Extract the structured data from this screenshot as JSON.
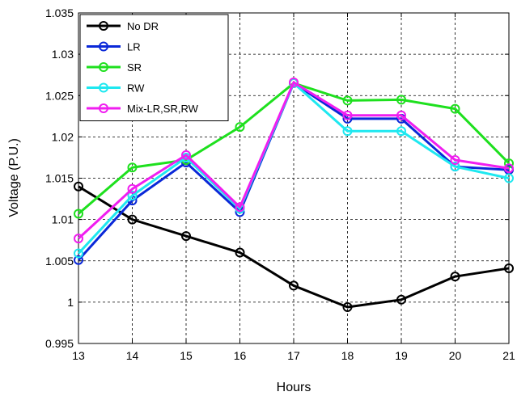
{
  "chart_data": {
    "type": "line",
    "title": "",
    "xlabel": "Hours",
    "ylabel": "Voltage (P.U.)",
    "x": [
      13,
      14,
      15,
      16,
      17,
      18,
      19,
      20,
      21
    ],
    "xlim": [
      13,
      21
    ],
    "ylim": [
      0.995,
      1.035
    ],
    "xticks": [
      "13",
      "14",
      "15",
      "16",
      "17",
      "18",
      "19",
      "20",
      "21"
    ],
    "yticks": [
      0.995,
      1,
      1.005,
      1.01,
      1.015,
      1.02,
      1.025,
      1.03,
      1.035
    ],
    "ytick_labels": [
      "0.995",
      "1",
      "1.005",
      "1.01",
      "1.015",
      "1.02",
      "1.025",
      "1.03",
      "1.035"
    ],
    "grid": true,
    "legend_position": "top-left",
    "series": [
      {
        "name": "No DR",
        "color": "#000000",
        "values": [
          1.014,
          1.01,
          1.008,
          1.006,
          1.002,
          0.9994,
          1.0003,
          1.0031,
          1.0041
        ]
      },
      {
        "name": "LR",
        "color": "#0a28d8",
        "values": [
          1.0051,
          1.0123,
          1.0169,
          1.0109,
          1.0265,
          1.0222,
          1.0222,
          1.0164,
          1.016
        ]
      },
      {
        "name": "SR",
        "color": "#1ee01e",
        "values": [
          1.0107,
          1.0163,
          1.0172,
          1.0212,
          1.0265,
          1.0244,
          1.0245,
          1.0234,
          1.0168
        ]
      },
      {
        "name": "RW",
        "color": "#1ee8f0",
        "values": [
          1.0059,
          1.0129,
          1.0175,
          1.0113,
          1.0265,
          1.0207,
          1.0207,
          1.0164,
          1.015
        ]
      },
      {
        "name": "Mix-LR,SR,RW",
        "color": "#f01ef0",
        "values": [
          1.0077,
          1.0137,
          1.0178,
          1.0115,
          1.0266,
          1.0226,
          1.0226,
          1.0172,
          1.0162
        ]
      }
    ]
  }
}
